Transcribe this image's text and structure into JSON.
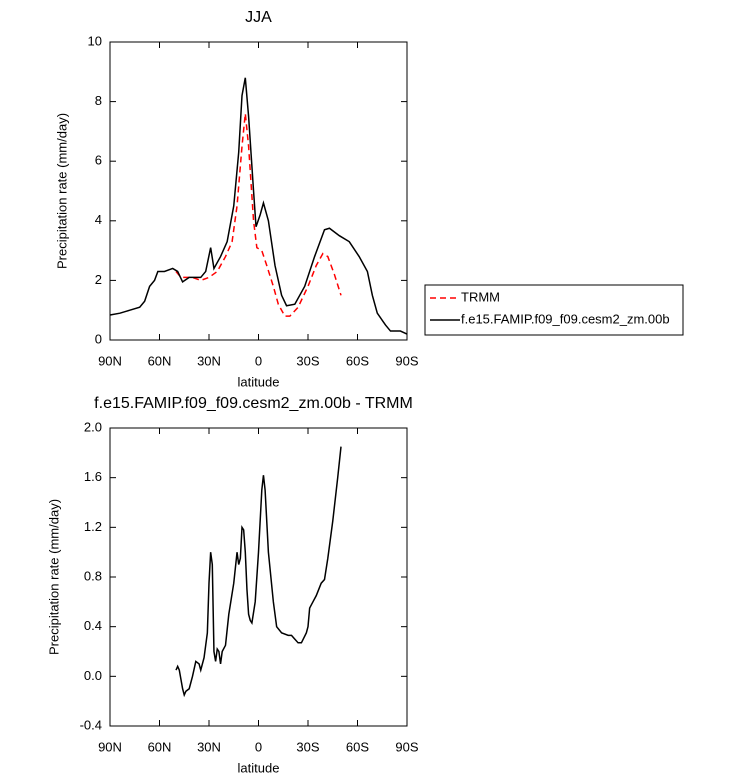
{
  "chart_data": [
    {
      "type": "line",
      "title": "JJA",
      "xlabel": "latitude",
      "ylabel": "Precipitation rate (mm/day)",
      "xlim": [
        90,
        -90
      ],
      "ylim": [
        0,
        10
      ],
      "xticks": [
        {
          "value": 90,
          "label": "90N"
        },
        {
          "value": 60,
          "label": "60N"
        },
        {
          "value": 30,
          "label": "30N"
        },
        0,
        {
          "value": -30,
          "label": "30S"
        },
        {
          "value": -60,
          "label": "60S"
        },
        {
          "value": -90,
          "label": "90S"
        }
      ],
      "yticks": [
        0,
        2,
        4,
        6,
        8,
        10
      ],
      "legend": "right",
      "series": [
        {
          "name": "TRMM",
          "color": "#ff0000",
          "dashed": true,
          "x": [
            50,
            47,
            44,
            40,
            35,
            30,
            25,
            20,
            16,
            13,
            10,
            8,
            6,
            3,
            1,
            -2,
            -5,
            -9,
            -12,
            -16,
            -19,
            -24,
            -30,
            -35,
            -39,
            -42,
            -46,
            -50
          ],
          "values": [
            2.3,
            2.1,
            2.1,
            2.1,
            2.0,
            2.1,
            2.3,
            2.8,
            3.3,
            4.5,
            6.5,
            7.6,
            6.5,
            4.0,
            3.1,
            3.0,
            2.5,
            1.8,
            1.2,
            0.8,
            0.8,
            1.1,
            1.8,
            2.5,
            2.9,
            2.8,
            2.2,
            1.5
          ]
        },
        {
          "name": "f.e15.FAMIP.f09_f09.cesm2_zm.00b",
          "color": "#000000",
          "dashed": false,
          "x": [
            90,
            84,
            78,
            72,
            69,
            66,
            63,
            61,
            57,
            52,
            49,
            46,
            42,
            35,
            32,
            29,
            27,
            23,
            19,
            15,
            12,
            10,
            8,
            6,
            3,
            1.5,
            -1,
            -3,
            -6,
            -10,
            -14,
            -17,
            -22,
            -28,
            -34,
            -40,
            -43,
            -49,
            -55,
            -61,
            -66,
            -69,
            -72,
            -77,
            -80,
            -86,
            -90
          ],
          "values": [
            0.84,
            0.9,
            1.0,
            1.1,
            1.3,
            1.8,
            2.0,
            2.3,
            2.3,
            2.4,
            2.3,
            1.95,
            2.1,
            2.1,
            2.3,
            3.1,
            2.4,
            2.8,
            3.3,
            4.5,
            6.3,
            8.2,
            8.8,
            7.5,
            5.0,
            3.8,
            4.2,
            4.6,
            4.0,
            2.5,
            1.5,
            1.15,
            1.2,
            1.8,
            2.8,
            3.7,
            3.75,
            3.5,
            3.3,
            2.8,
            2.3,
            1.5,
            0.9,
            0.5,
            0.3,
            0.3,
            0.2
          ]
        }
      ]
    },
    {
      "type": "line",
      "title": "f.e15.FAMIP.f09_f09.cesm2_zm.00b - TRMM",
      "xlabel": "latitude",
      "ylabel": "Precipitation rate (mm/day)",
      "xlim": [
        90,
        -90
      ],
      "ylim": [
        -0.4,
        2
      ],
      "xticks": [
        {
          "value": 90,
          "label": "90N"
        },
        {
          "value": 60,
          "label": "60N"
        },
        {
          "value": 30,
          "label": "30N"
        },
        0,
        {
          "value": -30,
          "label": "30S"
        },
        {
          "value": -60,
          "label": "60S"
        },
        {
          "value": -90,
          "label": "90S"
        }
      ],
      "yticks": [
        -0.4,
        {
          "value": 0,
          "label": "0.0"
        },
        0.4,
        0.8,
        1.2,
        1.6,
        {
          "value": 2,
          "label": "2.0"
        }
      ],
      "color": "#000000",
      "x": [
        50,
        49,
        48,
        46,
        45,
        44,
        42,
        40,
        38,
        36,
        35,
        33,
        31,
        30,
        29,
        28,
        27,
        26,
        25,
        24,
        23,
        22,
        20,
        18,
        15,
        13,
        12,
        11,
        10,
        9,
        8,
        7,
        6,
        5,
        4,
        2,
        0,
        -2,
        -3,
        -4,
        -6,
        -9,
        -11,
        -14,
        -18,
        -20,
        -22,
        -24,
        -26,
        -29,
        -30,
        -31,
        -33,
        -35,
        -38,
        -40,
        -42,
        -45,
        -48,
        -50
      ],
      "values": [
        0.05,
        0.08,
        0.05,
        -0.1,
        -0.15,
        -0.12,
        -0.1,
        0.0,
        0.12,
        0.1,
        0.05,
        0.15,
        0.35,
        0.75,
        1.0,
        0.9,
        0.2,
        0.12,
        0.22,
        0.2,
        0.1,
        0.2,
        0.25,
        0.5,
        0.75,
        1.0,
        0.9,
        0.95,
        1.2,
        1.18,
        1.0,
        0.7,
        0.5,
        0.45,
        0.43,
        0.6,
        1.0,
        1.5,
        1.62,
        1.5,
        1.0,
        0.6,
        0.4,
        0.35,
        0.33,
        0.33,
        0.3,
        0.27,
        0.27,
        0.35,
        0.4,
        0.55,
        0.6,
        0.65,
        0.75,
        0.78,
        0.95,
        1.25,
        1.6,
        1.85
      ]
    }
  ]
}
